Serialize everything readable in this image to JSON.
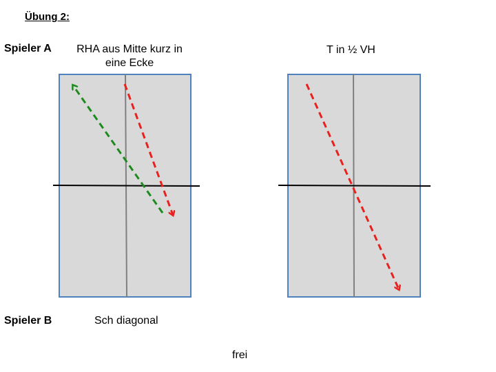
{
  "title": "Übung 2:",
  "player_a": {
    "label": "Spieler A",
    "left_court_text": "RHA aus Mitte kurz in eine Ecke",
    "right_court_text": "T in ½ VH"
  },
  "player_b": {
    "label": "Spieler B",
    "left_court_text": "Sch diagonal",
    "bottom_text": "frei"
  },
  "colors": {
    "court_fill": "#d9d9d9",
    "court_border": "#4f81bd",
    "center_line": "#808080",
    "net": "#000000",
    "arrow_red": "#e8201e",
    "arrow_green": "#1e8a1e"
  }
}
